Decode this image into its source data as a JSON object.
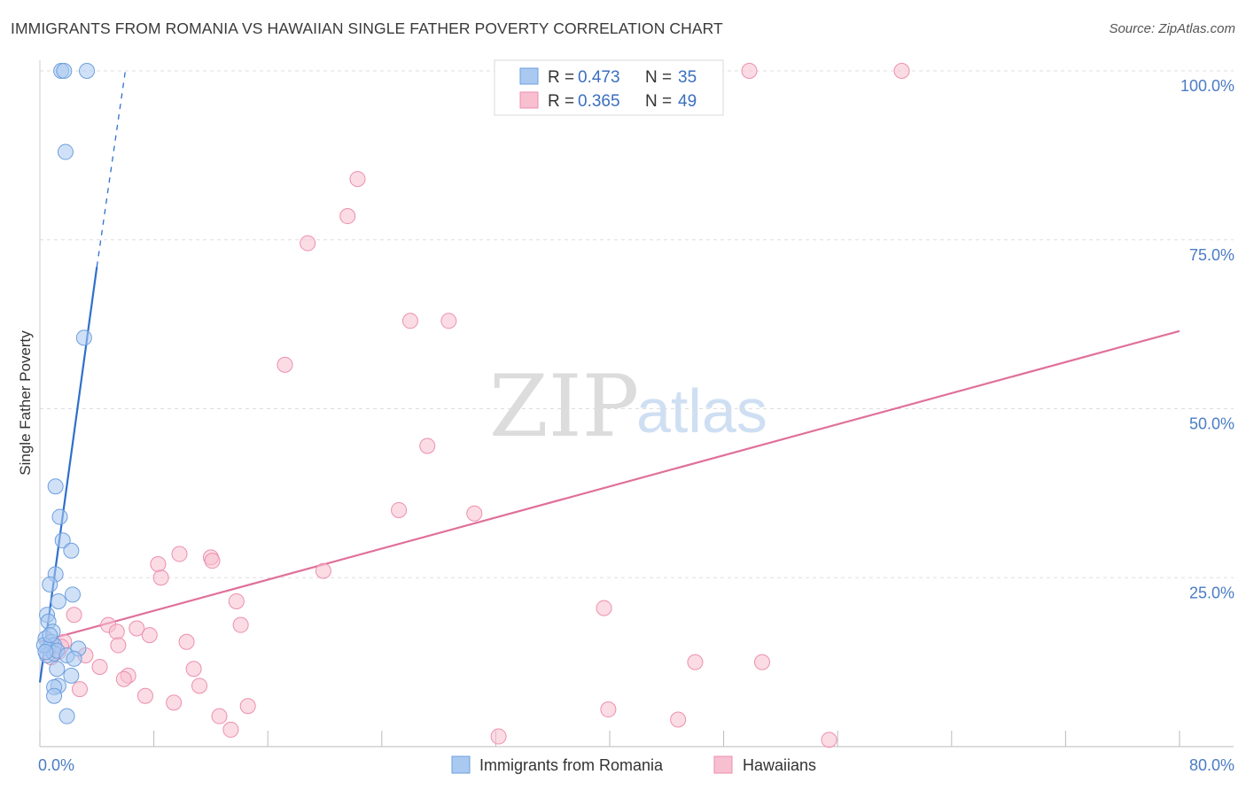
{
  "header": {
    "title": "IMMIGRANTS FROM ROMANIA VS HAWAIIAN SINGLE FATHER POVERTY CORRELATION CHART",
    "source": "Source: ZipAtlas.com"
  },
  "watermark": {
    "zip": "ZIP",
    "atlas": "atlas"
  },
  "colors": {
    "romania_fill": "#a9c9f0",
    "romania_stroke": "#6d9fde",
    "romania_line": "#2f6fcc",
    "hawaiian_fill": "#f7bfd0",
    "hawaiian_stroke": "#ec8fae",
    "hawaiian_line": "#e0709a",
    "tick_label": "#4a7cc4",
    "grid": "#dddddd"
  },
  "legend": {
    "r_label": "R =",
    "n_label": "N =",
    "romania": {
      "r": "0.473",
      "n": "35"
    },
    "hawaiian": {
      "r": "0.365",
      "n": "49"
    }
  },
  "chart_data": {
    "type": "scatter",
    "title": "IMMIGRANTS FROM ROMANIA VS HAWAIIAN SINGLE FATHER POVERTY CORRELATION CHART",
    "xlabel": "",
    "ylabel": "Single Father Poverty",
    "xlim": [
      0,
      80
    ],
    "ylim": [
      0,
      100
    ],
    "x_tick_labels": [
      "0.0%",
      "80.0%"
    ],
    "y_tick_labels": [
      "25.0%",
      "50.0%",
      "75.0%",
      "100.0%"
    ],
    "y_tick_values": [
      25,
      50,
      75,
      100
    ],
    "grid": true,
    "legend_position": "top-center",
    "series": [
      {
        "name": "Immigrants from Romania",
        "points": [
          [
            1.5,
            100
          ],
          [
            1.7,
            100
          ],
          [
            3.3,
            100
          ],
          [
            1.8,
            88
          ],
          [
            3.1,
            60.5
          ],
          [
            1.1,
            38.5
          ],
          [
            1.4,
            34
          ],
          [
            1.6,
            30.5
          ],
          [
            2.2,
            29
          ],
          [
            1.1,
            25.5
          ],
          [
            0.7,
            24
          ],
          [
            2.3,
            22.5
          ],
          [
            1.3,
            21.5
          ],
          [
            0.5,
            19.5
          ],
          [
            0.6,
            18.5
          ],
          [
            0.9,
            17
          ],
          [
            0.4,
            16
          ],
          [
            0.8,
            15.5
          ],
          [
            1.0,
            15
          ],
          [
            0.6,
            14.5
          ],
          [
            0.5,
            13.5
          ],
          [
            1.0,
            13.8
          ],
          [
            1.2,
            14.2
          ],
          [
            1.9,
            13.5
          ],
          [
            2.7,
            14.5
          ],
          [
            2.4,
            13
          ],
          [
            1.2,
            11.5
          ],
          [
            2.2,
            10.5
          ],
          [
            1.3,
            9
          ],
          [
            1.0,
            8.8
          ],
          [
            1.0,
            7.5
          ],
          [
            1.9,
            4.5
          ],
          [
            0.3,
            15
          ],
          [
            0.4,
            14
          ],
          [
            0.7,
            16.5
          ]
        ],
        "trend": {
          "x0": 0,
          "y0": 9.5,
          "x1": 4,
          "y1": 71,
          "dashed_to_x": 6,
          "dashed_to_y": 100
        }
      },
      {
        "name": "Hawaiians",
        "points": [
          [
            49.8,
            100
          ],
          [
            60.5,
            100
          ],
          [
            22.3,
            84
          ],
          [
            21.6,
            78.5
          ],
          [
            18.8,
            74.5
          ],
          [
            26.0,
            63
          ],
          [
            28.7,
            63
          ],
          [
            17.2,
            56.5
          ],
          [
            27.2,
            44.5
          ],
          [
            25.2,
            35
          ],
          [
            30.5,
            34.5
          ],
          [
            9.8,
            28.5
          ],
          [
            12.0,
            28
          ],
          [
            8.3,
            27
          ],
          [
            12.1,
            27.5
          ],
          [
            19.9,
            26
          ],
          [
            8.5,
            25
          ],
          [
            13.8,
            21.5
          ],
          [
            39.6,
            20.5
          ],
          [
            2.4,
            19.5
          ],
          [
            14.1,
            18
          ],
          [
            4.8,
            18
          ],
          [
            5.4,
            17
          ],
          [
            6.8,
            17.5
          ],
          [
            7.7,
            16.5
          ],
          [
            1.7,
            15.5
          ],
          [
            5.5,
            15
          ],
          [
            10.3,
            15.5
          ],
          [
            1.3,
            14
          ],
          [
            3.2,
            13.5
          ],
          [
            0.8,
            13.2
          ],
          [
            4.2,
            11.8
          ],
          [
            10.8,
            11.5
          ],
          [
            6.2,
            10.5
          ],
          [
            5.9,
            10
          ],
          [
            46.0,
            12.5
          ],
          [
            50.7,
            12.5
          ],
          [
            11.2,
            9
          ],
          [
            2.8,
            8.5
          ],
          [
            7.4,
            7.5
          ],
          [
            9.4,
            6.5
          ],
          [
            14.6,
            6
          ],
          [
            39.9,
            5.5
          ],
          [
            12.6,
            4.5
          ],
          [
            44.8,
            4
          ],
          [
            13.4,
            2.5
          ],
          [
            32.2,
            1.5
          ],
          [
            55.4,
            1
          ],
          [
            1.5,
            14.8
          ]
        ],
        "trend": {
          "x0": 0,
          "y0": 15.5,
          "x1": 80,
          "y1": 61.5
        }
      }
    ]
  }
}
